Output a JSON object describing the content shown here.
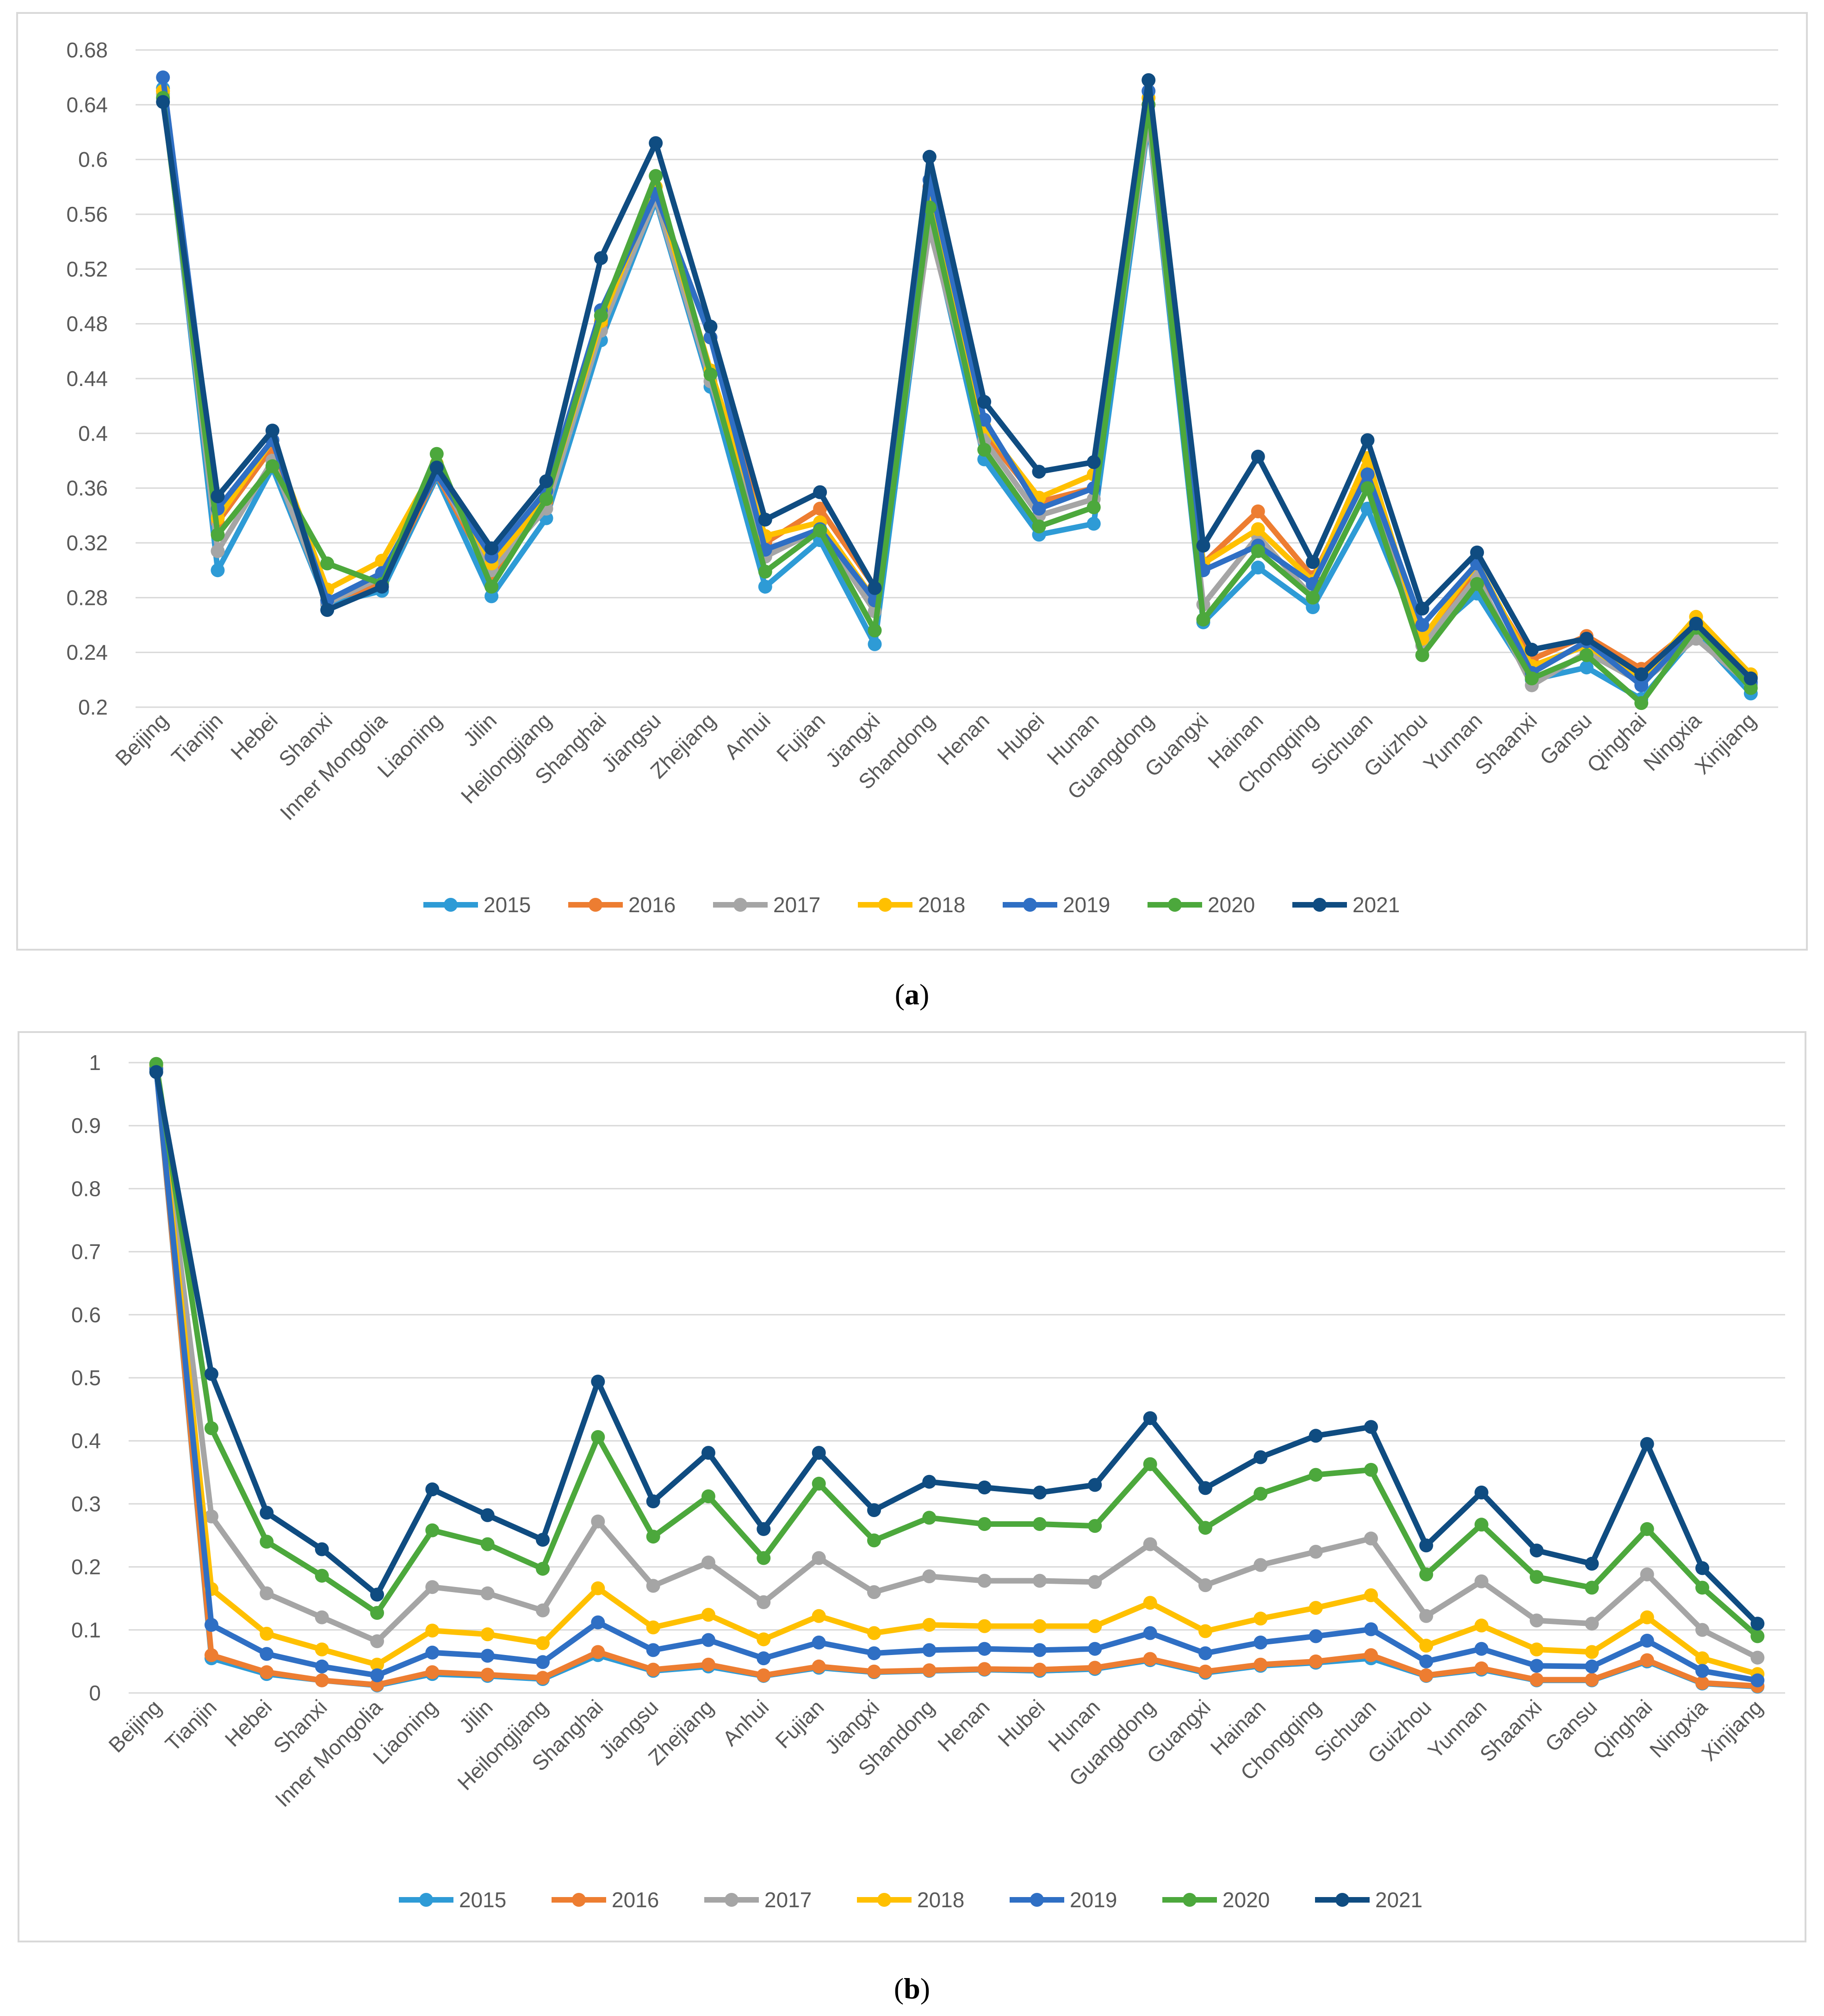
{
  "chart_data": [
    {
      "type": "line",
      "caption": "a",
      "categories": [
        "Beijing",
        "Tianjin",
        "Hebei",
        "Shanxi",
        "Inner Mongolia",
        "Liaoning",
        "Jilin",
        "Heilongjiang",
        "Shanghai",
        "Jiangsu",
        "Zhejiang",
        "Anhui",
        "Fujian",
        "Jiangxi",
        "Shandong",
        "Henan",
        "Hubei",
        "Hunan",
        "Guangdong",
        "Guangxi",
        "Hainan",
        "Chongqing",
        "Sichuan",
        "Guizhou",
        "Yunnan",
        "Shaanxi",
        "Gansu",
        "Qinghai",
        "Ningxia",
        "Xinjiang"
      ],
      "ylim": [
        0.2,
        0.68
      ],
      "yticks": [
        "0.2",
        "0.24",
        "0.28",
        "0.32",
        "0.36",
        "0.4",
        "0.44",
        "0.48",
        "0.52",
        "0.56",
        "0.6",
        "0.64",
        "0.68"
      ],
      "grid": true,
      "legend": "bottom",
      "series": [
        {
          "name": "2015",
          "color": "#2E9BD6",
          "values": [
            0.652,
            0.3,
            0.375,
            0.275,
            0.285,
            0.368,
            0.281,
            0.338,
            0.468,
            0.57,
            0.434,
            0.288,
            0.322,
            0.246,
            0.555,
            0.381,
            0.326,
            0.334,
            0.628,
            0.262,
            0.302,
            0.273,
            0.345,
            0.248,
            0.283,
            0.22,
            0.229,
            0.206,
            0.253,
            0.21
          ]
        },
        {
          "name": "2016",
          "color": "#ED7D31",
          "values": [
            0.65,
            0.335,
            0.39,
            0.278,
            0.29,
            0.37,
            0.296,
            0.35,
            0.48,
            0.575,
            0.47,
            0.32,
            0.345,
            0.288,
            0.58,
            0.4,
            0.35,
            0.36,
            0.64,
            0.305,
            0.343,
            0.295,
            0.375,
            0.25,
            0.3,
            0.235,
            0.252,
            0.228,
            0.26,
            0.222
          ]
        },
        {
          "name": "2017",
          "color": "#A5A5A5",
          "values": [
            0.648,
            0.314,
            0.38,
            0.276,
            0.295,
            0.372,
            0.3,
            0.345,
            0.475,
            0.572,
            0.438,
            0.31,
            0.33,
            0.27,
            0.55,
            0.395,
            0.34,
            0.352,
            0.63,
            0.275,
            0.325,
            0.28,
            0.36,
            0.245,
            0.295,
            0.216,
            0.24,
            0.218,
            0.25,
            0.216
          ]
        },
        {
          "name": "2018",
          "color": "#FFC000",
          "values": [
            0.65,
            0.338,
            0.395,
            0.286,
            0.307,
            0.378,
            0.305,
            0.352,
            0.482,
            0.58,
            0.446,
            0.325,
            0.335,
            0.278,
            0.57,
            0.405,
            0.353,
            0.37,
            0.645,
            0.305,
            0.33,
            0.292,
            0.382,
            0.25,
            0.305,
            0.23,
            0.245,
            0.22,
            0.266,
            0.224
          ]
        },
        {
          "name": "2019",
          "color": "#2F6FC4",
          "values": [
            0.66,
            0.345,
            0.395,
            0.278,
            0.298,
            0.37,
            0.31,
            0.358,
            0.49,
            0.575,
            0.47,
            0.315,
            0.33,
            0.278,
            0.585,
            0.41,
            0.345,
            0.36,
            0.65,
            0.3,
            0.318,
            0.29,
            0.37,
            0.26,
            0.305,
            0.225,
            0.248,
            0.216,
            0.258,
            0.218
          ]
        },
        {
          "name": "2020",
          "color": "#4CA83C",
          "values": [
            0.645,
            0.326,
            0.376,
            0.305,
            0.29,
            0.385,
            0.288,
            0.352,
            0.486,
            0.588,
            0.443,
            0.299,
            0.329,
            0.256,
            0.565,
            0.388,
            0.332,
            0.346,
            0.64,
            0.264,
            0.314,
            0.28,
            0.36,
            0.238,
            0.29,
            0.221,
            0.238,
            0.203,
            0.258,
            0.214
          ]
        },
        {
          "name": "2021",
          "color": "#0F4C81",
          "values": [
            0.642,
            0.354,
            0.402,
            0.271,
            0.288,
            0.375,
            0.316,
            0.365,
            0.528,
            0.612,
            0.478,
            0.337,
            0.357,
            0.287,
            0.602,
            0.423,
            0.372,
            0.379,
            0.658,
            0.318,
            0.383,
            0.306,
            0.395,
            0.272,
            0.313,
            0.242,
            0.25,
            0.224,
            0.261,
            0.221
          ]
        }
      ]
    },
    {
      "type": "line",
      "caption": "b",
      "categories": [
        "Beijing",
        "Tianjin",
        "Hebei",
        "Shanxi",
        "Inner Mongolia",
        "Liaoning",
        "Jilin",
        "Heilongjiang",
        "Shanghai",
        "Jiangsu",
        "Zhejiang",
        "Anhui",
        "Fujian",
        "Jiangxi",
        "Shandong",
        "Henan",
        "Hubei",
        "Hunan",
        "Guangdong",
        "Guangxi",
        "Hainan",
        "Chongqing",
        "Sichuan",
        "Guizhou",
        "Yunnan",
        "Shaanxi",
        "Gansu",
        "Qinghai",
        "Ningxia",
        "Xinjiang"
      ],
      "ylim": [
        0,
        1
      ],
      "yticks": [
        "0",
        "0.1",
        "0.2",
        "0.3",
        "0.4",
        "0.5",
        "0.6",
        "0.7",
        "0.8",
        "0.9",
        "1"
      ],
      "grid": true,
      "legend": "bottom",
      "series": [
        {
          "name": "2015",
          "color": "#2E9BD6",
          "values": [
            0.99,
            0.055,
            0.03,
            0.02,
            0.012,
            0.03,
            0.027,
            0.022,
            0.06,
            0.035,
            0.042,
            0.027,
            0.04,
            0.033,
            0.035,
            0.037,
            0.035,
            0.038,
            0.052,
            0.032,
            0.043,
            0.048,
            0.055,
            0.027,
            0.037,
            0.02,
            0.02,
            0.05,
            0.015,
            0.01
          ]
        },
        {
          "name": "2016",
          "color": "#ED7D31",
          "values": [
            0.992,
            0.06,
            0.033,
            0.02,
            0.013,
            0.033,
            0.029,
            0.024,
            0.065,
            0.037,
            0.045,
            0.028,
            0.042,
            0.034,
            0.036,
            0.038,
            0.037,
            0.04,
            0.054,
            0.034,
            0.045,
            0.05,
            0.06,
            0.028,
            0.039,
            0.021,
            0.021,
            0.052,
            0.016,
            0.011
          ]
        },
        {
          "name": "2017",
          "color": "#A5A5A5",
          "values": [
            0.995,
            0.28,
            0.158,
            0.12,
            0.082,
            0.168,
            0.158,
            0.131,
            0.272,
            0.17,
            0.207,
            0.144,
            0.214,
            0.16,
            0.185,
            0.178,
            0.178,
            0.176,
            0.236,
            0.171,
            0.203,
            0.224,
            0.245,
            0.122,
            0.177,
            0.115,
            0.11,
            0.188,
            0.1,
            0.056
          ]
        },
        {
          "name": "2018",
          "color": "#FFC000",
          "values": [
            0.996,
            0.165,
            0.094,
            0.069,
            0.045,
            0.099,
            0.093,
            0.079,
            0.166,
            0.104,
            0.124,
            0.085,
            0.122,
            0.095,
            0.108,
            0.106,
            0.106,
            0.106,
            0.143,
            0.098,
            0.118,
            0.135,
            0.155,
            0.075,
            0.107,
            0.069,
            0.065,
            0.12,
            0.055,
            0.03
          ]
        },
        {
          "name": "2019",
          "color": "#2F6FC4",
          "values": [
            0.99,
            0.108,
            0.062,
            0.042,
            0.028,
            0.064,
            0.059,
            0.049,
            0.112,
            0.068,
            0.084,
            0.055,
            0.08,
            0.063,
            0.068,
            0.07,
            0.068,
            0.07,
            0.095,
            0.063,
            0.08,
            0.09,
            0.101,
            0.05,
            0.07,
            0.043,
            0.042,
            0.083,
            0.035,
            0.02
          ]
        },
        {
          "name": "2020",
          "color": "#4CA83C",
          "values": [
            0.998,
            0.42,
            0.24,
            0.186,
            0.127,
            0.258,
            0.236,
            0.197,
            0.406,
            0.248,
            0.312,
            0.214,
            0.332,
            0.242,
            0.278,
            0.268,
            0.268,
            0.265,
            0.363,
            0.262,
            0.316,
            0.346,
            0.354,
            0.188,
            0.267,
            0.184,
            0.167,
            0.26,
            0.167,
            0.09
          ]
        },
        {
          "name": "2021",
          "color": "#0F4C81",
          "values": [
            0.985,
            0.506,
            0.286,
            0.228,
            0.156,
            0.323,
            0.282,
            0.243,
            0.494,
            0.304,
            0.381,
            0.26,
            0.381,
            0.29,
            0.335,
            0.326,
            0.318,
            0.33,
            0.436,
            0.325,
            0.374,
            0.408,
            0.422,
            0.234,
            0.318,
            0.226,
            0.205,
            0.395,
            0.198,
            0.11
          ]
        }
      ]
    }
  ]
}
